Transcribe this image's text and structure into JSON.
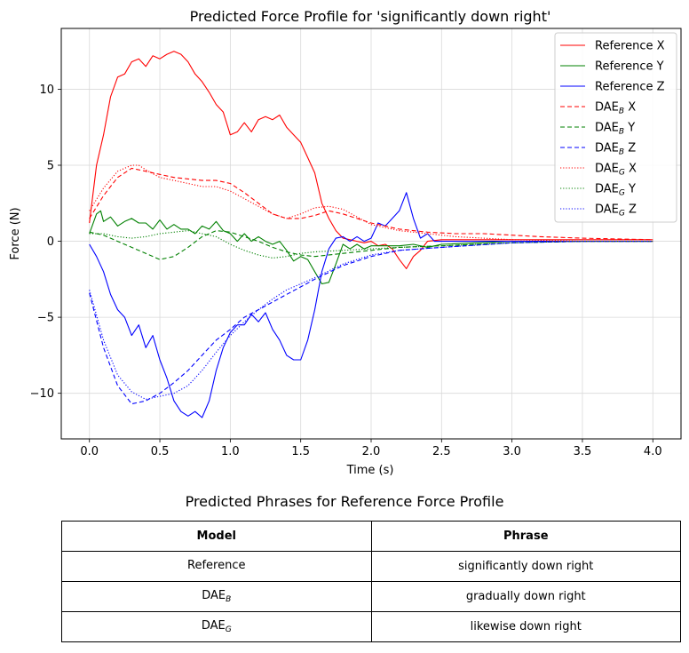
{
  "chart_data": {
    "type": "line",
    "title": "Predicted Force Profile for 'significantly down right'",
    "xlabel": "Time (s)",
    "ylabel": "Force (N)",
    "xlim": [
      -0.2,
      4.2
    ],
    "ylim": [
      -13,
      14
    ],
    "xticks": [
      0.0,
      0.5,
      1.0,
      1.5,
      2.0,
      2.5,
      3.0,
      3.5,
      4.0
    ],
    "xtick_labels": [
      "0.0",
      "0.5",
      "1.0",
      "1.5",
      "2.0",
      "2.5",
      "3.0",
      "3.5",
      "4.0"
    ],
    "yticks": [
      -10,
      -5,
      0,
      5,
      10
    ],
    "ytick_labels": [
      "−10",
      "−5",
      "0",
      "5",
      "10"
    ],
    "grid": true,
    "legend_position": "top-right",
    "series": [
      {
        "name": "Reference X",
        "legend_base": "Reference X",
        "legend_sub": "",
        "legend_suffix": "",
        "color": "#ff0000",
        "style": "solid",
        "x": [
          0.0,
          0.05,
          0.1,
          0.15,
          0.2,
          0.25,
          0.3,
          0.35,
          0.4,
          0.45,
          0.5,
          0.55,
          0.6,
          0.65,
          0.7,
          0.75,
          0.8,
          0.85,
          0.9,
          0.95,
          1.0,
          1.05,
          1.1,
          1.15,
          1.2,
          1.25,
          1.3,
          1.35,
          1.4,
          1.45,
          1.5,
          1.55,
          1.6,
          1.65,
          1.7,
          1.75,
          1.8,
          1.85,
          1.9,
          1.95,
          2.0,
          2.05,
          2.1,
          2.15,
          2.2,
          2.25,
          2.3,
          2.35,
          2.4,
          2.5,
          3.0,
          3.5,
          4.0
        ],
        "y": [
          1.2,
          5.0,
          7.0,
          9.5,
          10.8,
          11.0,
          11.8,
          12.0,
          11.5,
          12.2,
          12.0,
          12.3,
          12.5,
          12.3,
          11.8,
          11.0,
          10.5,
          9.8,
          9.0,
          8.5,
          7.0,
          7.2,
          7.8,
          7.2,
          8.0,
          8.2,
          8.0,
          8.3,
          7.5,
          7.0,
          6.5,
          5.5,
          4.5,
          2.5,
          1.5,
          0.7,
          0.2,
          0.1,
          0.0,
          -0.1,
          0.0,
          -0.3,
          -0.2,
          -0.5,
          -1.2,
          -1.8,
          -1.0,
          -0.6,
          0.0,
          0.1,
          0.1,
          0.1,
          0.1
        ]
      },
      {
        "name": "Reference Y",
        "legend_base": "Reference Y",
        "legend_sub": "",
        "legend_suffix": "",
        "color": "#008000",
        "style": "solid",
        "x": [
          0.0,
          0.05,
          0.08,
          0.1,
          0.15,
          0.2,
          0.25,
          0.3,
          0.35,
          0.4,
          0.45,
          0.5,
          0.55,
          0.6,
          0.65,
          0.7,
          0.75,
          0.8,
          0.85,
          0.9,
          0.95,
          1.0,
          1.05,
          1.1,
          1.15,
          1.2,
          1.25,
          1.3,
          1.35,
          1.4,
          1.45,
          1.5,
          1.55,
          1.6,
          1.65,
          1.7,
          1.75,
          1.8,
          1.85,
          1.9,
          1.95,
          2.0,
          2.1,
          2.2,
          2.3,
          2.4,
          2.5,
          3.0,
          3.5,
          4.0
        ],
        "y": [
          0.5,
          1.8,
          2.0,
          1.3,
          1.6,
          1.0,
          1.3,
          1.5,
          1.2,
          1.2,
          0.8,
          1.4,
          0.8,
          1.1,
          0.8,
          0.8,
          0.5,
          1.0,
          0.8,
          1.3,
          0.7,
          0.5,
          0.0,
          0.5,
          0.0,
          0.3,
          0.0,
          -0.2,
          0.0,
          -0.6,
          -1.3,
          -1.0,
          -1.2,
          -2.0,
          -2.8,
          -2.7,
          -1.5,
          -0.2,
          -0.5,
          -0.2,
          -0.5,
          -0.3,
          -0.3,
          -0.3,
          -0.2,
          -0.4,
          -0.2,
          0.0,
          0.0,
          0.0
        ]
      },
      {
        "name": "Reference Z",
        "legend_base": "Reference Z",
        "legend_sub": "",
        "legend_suffix": "",
        "color": "#0000ff",
        "style": "solid",
        "x": [
          0.0,
          0.05,
          0.1,
          0.15,
          0.2,
          0.25,
          0.3,
          0.35,
          0.4,
          0.45,
          0.5,
          0.55,
          0.6,
          0.65,
          0.7,
          0.75,
          0.8,
          0.85,
          0.9,
          0.95,
          1.0,
          1.05,
          1.1,
          1.15,
          1.2,
          1.25,
          1.3,
          1.35,
          1.4,
          1.45,
          1.5,
          1.55,
          1.6,
          1.65,
          1.7,
          1.75,
          1.8,
          1.85,
          1.9,
          1.95,
          2.0,
          2.05,
          2.1,
          2.15,
          2.2,
          2.25,
          2.3,
          2.35,
          2.4,
          2.45,
          2.5,
          3.0,
          3.5,
          4.0
        ],
        "y": [
          -0.2,
          -1.0,
          -2.0,
          -3.5,
          -4.5,
          -5.0,
          -6.2,
          -5.5,
          -7.0,
          -6.2,
          -7.8,
          -9.0,
          -10.5,
          -11.2,
          -11.5,
          -11.2,
          -11.6,
          -10.5,
          -8.5,
          -7.0,
          -6.0,
          -5.5,
          -5.5,
          -4.8,
          -5.3,
          -4.7,
          -5.8,
          -6.5,
          -7.5,
          -7.8,
          -7.8,
          -6.5,
          -4.5,
          -2.0,
          -0.5,
          0.2,
          0.3,
          0.0,
          0.3,
          0.0,
          0.2,
          1.2,
          1.0,
          1.5,
          2.0,
          3.2,
          1.5,
          0.2,
          0.5,
          0.0,
          0.0,
          0.0,
          0.0,
          0.0
        ]
      },
      {
        "name": "DAE_B X",
        "legend_base": "DAE",
        "legend_sub": "B",
        "legend_suffix": " X",
        "color": "#ff0000",
        "style": "dashed",
        "x": [
          0.0,
          0.1,
          0.2,
          0.3,
          0.4,
          0.5,
          0.6,
          0.7,
          0.8,
          0.9,
          1.0,
          1.1,
          1.2,
          1.3,
          1.4,
          1.5,
          1.6,
          1.7,
          1.8,
          1.9,
          2.0,
          2.2,
          2.4,
          2.6,
          2.8,
          3.0,
          3.2,
          3.5,
          4.0
        ],
        "y": [
          1.5,
          3.0,
          4.2,
          4.8,
          4.6,
          4.4,
          4.2,
          4.1,
          4.0,
          4.0,
          3.8,
          3.2,
          2.5,
          1.8,
          1.5,
          1.5,
          1.7,
          2.0,
          1.8,
          1.5,
          1.2,
          0.8,
          0.6,
          0.5,
          0.5,
          0.4,
          0.3,
          0.2,
          0.1
        ]
      },
      {
        "name": "DAE_B Y",
        "legend_base": "DAE",
        "legend_sub": "B",
        "legend_suffix": " Y",
        "color": "#008000",
        "style": "dashed",
        "x": [
          0.0,
          0.1,
          0.2,
          0.3,
          0.4,
          0.5,
          0.6,
          0.7,
          0.8,
          0.9,
          1.0,
          1.1,
          1.2,
          1.3,
          1.4,
          1.5,
          1.6,
          1.8,
          2.0,
          2.2,
          2.5,
          3.0,
          3.5,
          4.0
        ],
        "y": [
          0.6,
          0.4,
          0.0,
          -0.4,
          -0.8,
          -1.2,
          -1.0,
          -0.4,
          0.3,
          0.7,
          0.6,
          0.3,
          0.0,
          -0.4,
          -0.7,
          -0.9,
          -1.0,
          -0.8,
          -0.6,
          -0.4,
          -0.3,
          -0.1,
          0.0,
          0.0
        ]
      },
      {
        "name": "DAE_B Z",
        "legend_base": "DAE",
        "legend_sub": "B",
        "legend_suffix": " Z",
        "color": "#0000ff",
        "style": "dashed",
        "x": [
          0.0,
          0.1,
          0.2,
          0.3,
          0.4,
          0.5,
          0.6,
          0.7,
          0.8,
          0.9,
          1.0,
          1.1,
          1.2,
          1.3,
          1.4,
          1.5,
          1.6,
          1.8,
          2.0,
          2.2,
          2.5,
          3.0,
          3.5,
          4.0
        ],
        "y": [
          -3.4,
          -7.0,
          -9.5,
          -10.7,
          -10.5,
          -10.0,
          -9.3,
          -8.5,
          -7.5,
          -6.5,
          -5.8,
          -5.0,
          -4.5,
          -4.0,
          -3.5,
          -3.0,
          -2.5,
          -1.6,
          -1.0,
          -0.6,
          -0.4,
          -0.1,
          0.0,
          0.0
        ]
      },
      {
        "name": "DAE_G X",
        "legend_base": "DAE",
        "legend_sub": "G",
        "legend_suffix": " X",
        "color": "#ff0000",
        "style": "dotted",
        "x": [
          0.0,
          0.1,
          0.2,
          0.3,
          0.35,
          0.4,
          0.5,
          0.6,
          0.7,
          0.8,
          0.9,
          1.0,
          1.1,
          1.2,
          1.3,
          1.4,
          1.5,
          1.6,
          1.7,
          1.8,
          1.9,
          2.0,
          2.2,
          2.4,
          2.6,
          2.8,
          3.0,
          3.5,
          4.0
        ],
        "y": [
          2.0,
          3.5,
          4.6,
          5.0,
          5.0,
          4.7,
          4.2,
          4.0,
          3.8,
          3.6,
          3.6,
          3.3,
          2.8,
          2.3,
          1.8,
          1.5,
          1.8,
          2.2,
          2.3,
          2.1,
          1.6,
          1.1,
          0.7,
          0.5,
          0.3,
          0.2,
          0.1,
          0.0,
          0.0
        ]
      },
      {
        "name": "DAE_G Y",
        "legend_base": "DAE",
        "legend_sub": "G",
        "legend_suffix": " Y",
        "color": "#008000",
        "style": "dotted",
        "x": [
          0.0,
          0.1,
          0.2,
          0.3,
          0.4,
          0.5,
          0.6,
          0.7,
          0.8,
          0.9,
          1.0,
          1.1,
          1.2,
          1.3,
          1.4,
          1.5,
          1.6,
          1.8,
          2.0,
          2.2,
          2.5,
          3.0,
          3.5,
          4.0
        ],
        "y": [
          0.5,
          0.5,
          0.3,
          0.2,
          0.3,
          0.5,
          0.6,
          0.7,
          0.5,
          0.3,
          -0.2,
          -0.6,
          -0.9,
          -1.1,
          -1.0,
          -0.8,
          -0.7,
          -0.6,
          -0.5,
          -0.4,
          -0.3,
          -0.1,
          0.0,
          0.0
        ]
      },
      {
        "name": "DAE_G Z",
        "legend_base": "DAE",
        "legend_sub": "G",
        "legend_suffix": " Z",
        "color": "#0000ff",
        "style": "dotted",
        "x": [
          0.0,
          0.1,
          0.2,
          0.3,
          0.4,
          0.5,
          0.6,
          0.7,
          0.8,
          0.9,
          1.0,
          1.1,
          1.2,
          1.3,
          1.4,
          1.5,
          1.6,
          1.8,
          2.0,
          2.2,
          2.5,
          3.0,
          3.5,
          4.0
        ],
        "y": [
          -3.2,
          -6.5,
          -8.8,
          -9.9,
          -10.4,
          -10.2,
          -10.0,
          -9.5,
          -8.5,
          -7.3,
          -6.2,
          -5.3,
          -4.5,
          -3.8,
          -3.2,
          -2.8,
          -2.4,
          -1.5,
          -0.9,
          -0.6,
          -0.4,
          -0.1,
          0.0,
          0.0
        ]
      }
    ]
  },
  "table": {
    "title": "Predicted Phrases for Reference Force Profile",
    "headers": {
      "model": "Model",
      "phrase": "Phrase"
    },
    "rows": [
      {
        "model_base": "Reference",
        "model_sub": "",
        "phrase": "significantly down right"
      },
      {
        "model_base": "DAE",
        "model_sub": "B",
        "phrase": "gradually down right"
      },
      {
        "model_base": "DAE",
        "model_sub": "G",
        "phrase": "likewise down right"
      }
    ]
  }
}
